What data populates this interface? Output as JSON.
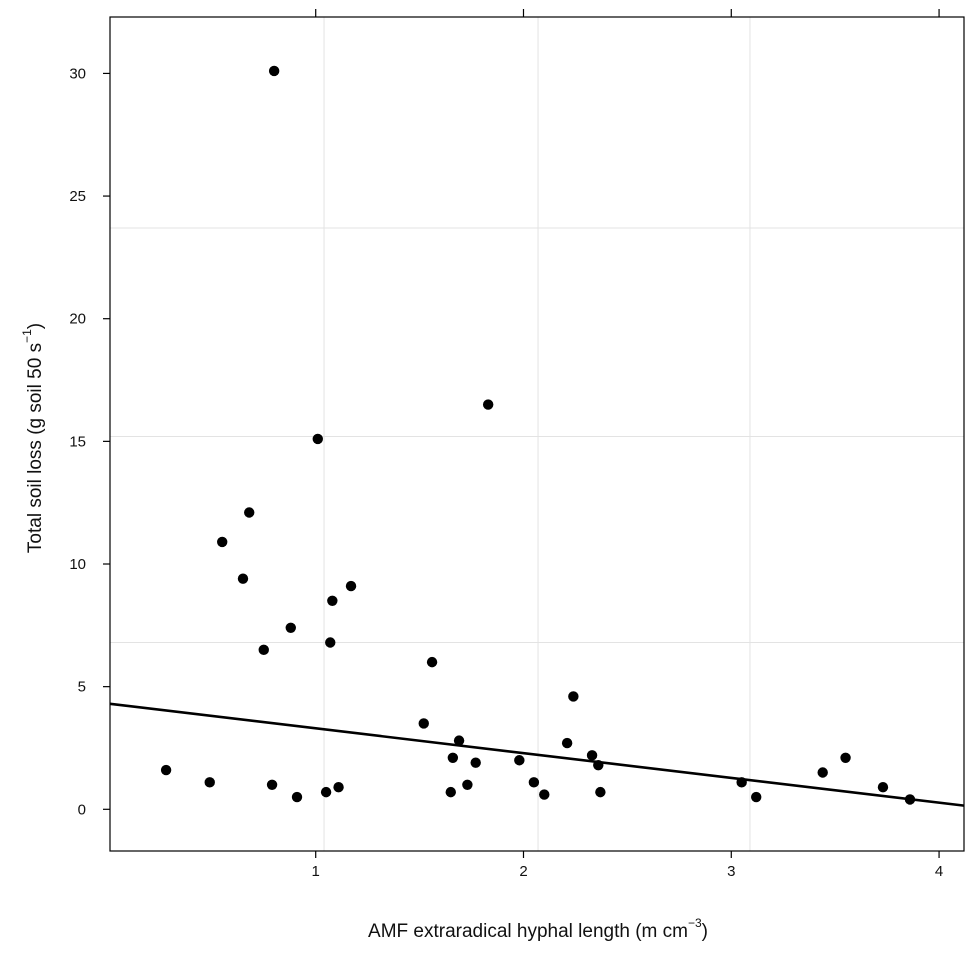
{
  "chart_data": {
    "type": "scatter",
    "title": "",
    "xlabel": {
      "pre": "AMF extraradical hyphal length (m cm",
      "sup": "−3",
      "post": ")"
    },
    "ylabel": {
      "pre": "Total soil loss (g soil 50 s",
      "sup": "−1",
      "post": ")"
    },
    "xlim": [
      0.01,
      4.12
    ],
    "ylim": [
      -1.7,
      32.3
    ],
    "xticks": [
      1,
      2,
      3,
      4
    ],
    "yticks": [
      0,
      5,
      10,
      15,
      20,
      25,
      30
    ],
    "x_tick_labels": [
      "1",
      "2",
      "3",
      "4"
    ],
    "y_tick_labels": [
      "0",
      "5",
      "10",
      "15",
      "20",
      "25",
      "30"
    ],
    "grid": true,
    "grid_x": [
      1.04,
      2.07,
      3.09
    ],
    "grid_y": [
      6.8,
      15.2,
      23.7
    ],
    "fit_line": {
      "x": [
        0.01,
        4.12
      ],
      "y": [
        4.3,
        0.15
      ]
    },
    "points": [
      {
        "x": 0.8,
        "y": 30.1
      },
      {
        "x": 1.83,
        "y": 16.5
      },
      {
        "x": 1.01,
        "y": 15.1
      },
      {
        "x": 0.68,
        "y": 12.1
      },
      {
        "x": 0.55,
        "y": 10.9
      },
      {
        "x": 0.65,
        "y": 9.4
      },
      {
        "x": 1.17,
        "y": 9.1
      },
      {
        "x": 1.08,
        "y": 8.5
      },
      {
        "x": 0.88,
        "y": 7.4
      },
      {
        "x": 1.07,
        "y": 6.8
      },
      {
        "x": 0.75,
        "y": 6.5
      },
      {
        "x": 1.56,
        "y": 6.0
      },
      {
        "x": 2.24,
        "y": 4.6
      },
      {
        "x": 1.52,
        "y": 3.5
      },
      {
        "x": 1.69,
        "y": 2.8
      },
      {
        "x": 2.21,
        "y": 2.7
      },
      {
        "x": 2.33,
        "y": 2.2
      },
      {
        "x": 3.55,
        "y": 2.1
      },
      {
        "x": 1.66,
        "y": 2.1
      },
      {
        "x": 1.98,
        "y": 2.0
      },
      {
        "x": 1.77,
        "y": 1.9
      },
      {
        "x": 2.36,
        "y": 1.8
      },
      {
        "x": 0.28,
        "y": 1.6
      },
      {
        "x": 3.44,
        "y": 1.5
      },
      {
        "x": 0.49,
        "y": 1.1
      },
      {
        "x": 3.05,
        "y": 1.1
      },
      {
        "x": 2.05,
        "y": 1.1
      },
      {
        "x": 0.79,
        "y": 1.0
      },
      {
        "x": 1.73,
        "y": 1.0
      },
      {
        "x": 3.73,
        "y": 0.9
      },
      {
        "x": 1.11,
        "y": 0.9
      },
      {
        "x": 1.05,
        "y": 0.7
      },
      {
        "x": 1.65,
        "y": 0.7
      },
      {
        "x": 2.37,
        "y": 0.7
      },
      {
        "x": 2.1,
        "y": 0.6
      },
      {
        "x": 0.91,
        "y": 0.5
      },
      {
        "x": 3.12,
        "y": 0.5
      },
      {
        "x": 3.86,
        "y": 0.4
      }
    ]
  }
}
